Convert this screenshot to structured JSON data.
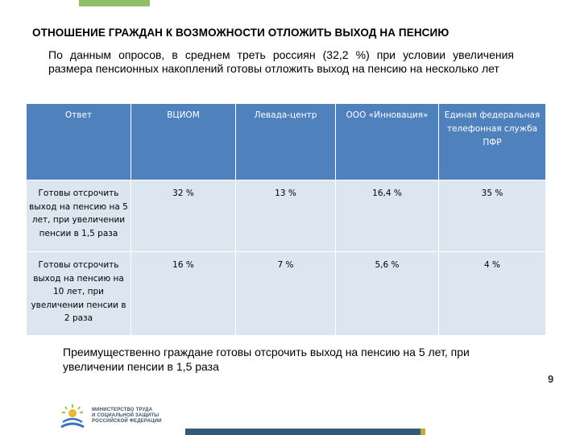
{
  "title": "ОТНОШЕНИЕ ГРАЖДАН К ВОЗМОЖНОСТИ ОТЛОЖИТЬ ВЫХОД НА ПЕНСИЮ",
  "intro": "По данным опросов, в среднем треть россиян (32,2 %) при условии увеличения размера пенсионных накоплений готовы отложить выход на пенсию на несколько лет",
  "table": {
    "headers": [
      "Ответ",
      "ВЦИОМ",
      "Левада-центр",
      "ООО «Инновация»",
      "Единая федеральная телефонная служба ПФР"
    ],
    "rows": [
      [
        "Готовы отсрочить выход на пенсию на 5 лет, при увеличении пенсии в 1,5 раза",
        "32 %",
        "13 %",
        "16,4 %",
        "35 %"
      ],
      [
        "Готовы отсрочить выход на пенсию на 10 лет, при увеличении пенсии в 2 раза",
        "16 %",
        "7 %",
        "5,6 %",
        "4 %"
      ]
    ]
  },
  "conclusion": "Преимущественно граждане готовы отсрочить выход на пенсию на 5 лет, при увеличении пенсии в 1,5 раза",
  "page_number": "9",
  "footer": {
    "ministry_line1": "МИНИСТЕРСТВО ТРУДА",
    "ministry_line2": "И СОЦИАЛЬНОЙ ЗАЩИТЫ",
    "ministry_line3": "РОССИЙСКОЙ ФЕДЕРАЦИИ",
    "logo_icon": "ministry-sun-logo-icon"
  },
  "colors": {
    "header_bg": "#4f81bd",
    "cell_bg": "#dce6f1",
    "accent_green": "#8fbf6a",
    "footer_bar": "#35597a"
  }
}
